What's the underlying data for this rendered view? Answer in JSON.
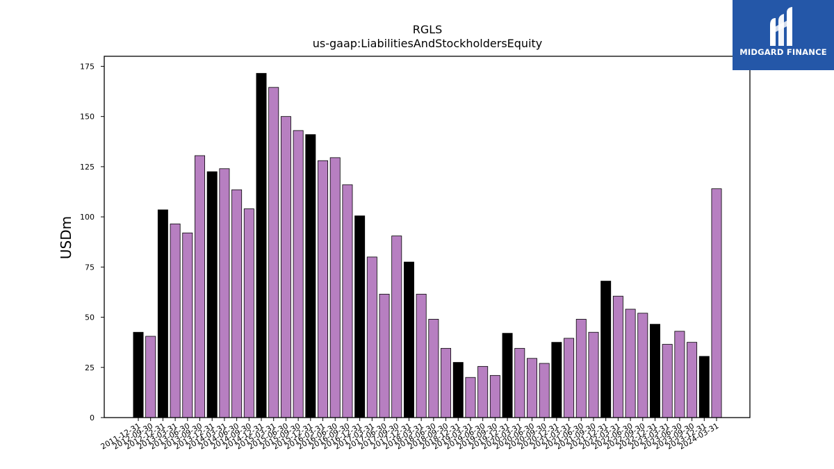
{
  "brand": {
    "name": "MIDGARD FINANCE",
    "logo_icon": "midgard-m-icon",
    "background": "#2457a8"
  },
  "colors": {
    "bar_default": "#b77fc1",
    "bar_highlight": "#000000",
    "edge": "#000000"
  },
  "chart_data": {
    "type": "bar",
    "title": "RGLS",
    "subtitle": "us-gaap:LiabilitiesAndStockholdersEquity",
    "xlabel": "",
    "ylabel": "USDm",
    "ylim": [
      0,
      180
    ],
    "yticks": [
      0,
      25,
      50,
      75,
      100,
      125,
      150,
      175
    ],
    "grid": false,
    "categories": [
      "2011-12-31",
      "2012-09-30",
      "2012-12-31",
      "2013-03-31",
      "2013-06-30",
      "2013-09-30",
      "2013-12-31",
      "2014-03-31",
      "2014-06-30",
      "2014-09-30",
      "2014-12-31",
      "2015-03-31",
      "2015-06-30",
      "2015-09-30",
      "2015-12-31",
      "2016-03-31",
      "2016-06-30",
      "2016-09-30",
      "2016-12-31",
      "2017-03-31",
      "2017-06-30",
      "2017-09-30",
      "2017-12-31",
      "2018-03-31",
      "2018-06-30",
      "2018-09-30",
      "2018-12-31",
      "2019-03-31",
      "2019-06-30",
      "2019-09-30",
      "2019-12-31",
      "2020-03-31",
      "2020-06-30",
      "2020-09-30",
      "2020-12-31",
      "2021-03-31",
      "2021-06-30",
      "2021-09-30",
      "2021-12-31",
      "2022-03-31",
      "2022-06-30",
      "2022-09-30",
      "2022-12-31",
      "2023-03-31",
      "2023-06-30",
      "2023-09-30",
      "2023-12-31",
      "2024-03-31"
    ],
    "values": [
      42.5,
      40.5,
      103.5,
      96.5,
      92.0,
      130.5,
      122.5,
      124.0,
      113.5,
      104.0,
      171.5,
      164.5,
      150.0,
      143.0,
      141.0,
      128.0,
      129.5,
      116.0,
      100.5,
      80.0,
      61.5,
      90.5,
      77.5,
      61.5,
      49.0,
      34.5,
      27.5,
      20.0,
      25.5,
      21.0,
      42.0,
      34.5,
      29.5,
      27.0,
      37.5,
      39.5,
      49.0,
      42.5,
      68.0,
      60.5,
      54.0,
      52.0,
      46.5,
      36.5,
      43.0,
      37.5,
      30.5,
      114.0
    ],
    "highlight": [
      true,
      false,
      true,
      false,
      false,
      false,
      true,
      false,
      false,
      false,
      true,
      false,
      false,
      false,
      true,
      false,
      false,
      false,
      true,
      false,
      false,
      false,
      true,
      false,
      false,
      false,
      true,
      false,
      false,
      false,
      true,
      false,
      false,
      false,
      true,
      false,
      false,
      false,
      true,
      false,
      false,
      false,
      true,
      false,
      false,
      false,
      true,
      false
    ]
  }
}
